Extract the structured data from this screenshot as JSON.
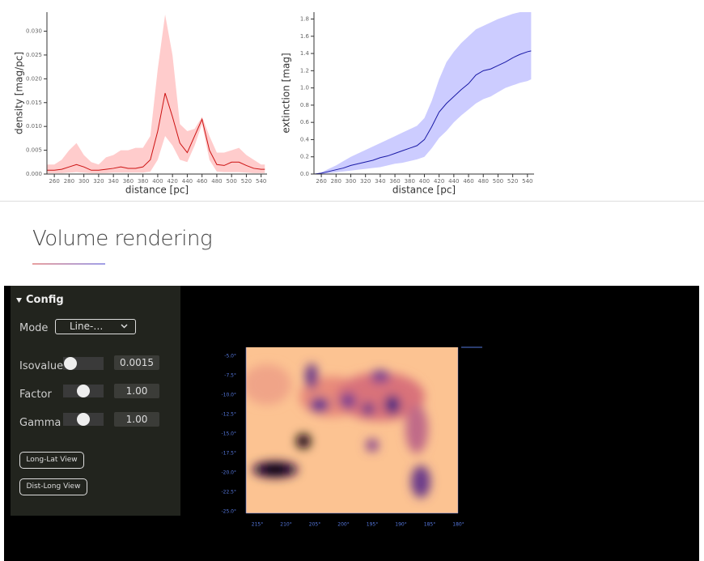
{
  "chart_data": [
    {
      "type": "line",
      "x_label": "distance [pc]",
      "y_label": "density [mag/pc]",
      "xlim": [
        250,
        548
      ],
      "ylim": [
        0,
        0.034
      ],
      "xticks": [
        260,
        280,
        300,
        320,
        340,
        360,
        380,
        400,
        420,
        440,
        460,
        480,
        500,
        520,
        540
      ],
      "yticks": [
        {
          "value": 0,
          "label": "0.000"
        },
        0.005,
        {
          "value": 0.01,
          "label": "0.010"
        },
        0.015,
        {
          "value": 0.02,
          "label": "0.020"
        },
        0.025,
        {
          "value": 0.03,
          "label": "0.030"
        }
      ],
      "x": [
        250,
        260,
        270,
        280,
        290,
        300,
        310,
        320,
        330,
        340,
        350,
        360,
        370,
        380,
        390,
        400,
        410,
        420,
        430,
        440,
        450,
        460,
        470,
        480,
        490,
        500,
        510,
        520,
        530,
        540,
        545
      ],
      "series": [
        {
          "color": "#cc1111",
          "band_color": "#ffcccc",
          "values": [
            0.0008,
            0.0008,
            0.001,
            0.0015,
            0.002,
            0.0015,
            0.0008,
            0.0008,
            0.001,
            0.0012,
            0.0015,
            0.0012,
            0.0012,
            0.0015,
            0.003,
            0.009,
            0.017,
            0.012,
            0.0065,
            0.0045,
            0.008,
            0.0115,
            0.005,
            0.002,
            0.0018,
            0.0025,
            0.0025,
            0.0018,
            0.0012,
            0.001,
            0.001
          ],
          "upper": [
            0.002,
            0.002,
            0.003,
            0.005,
            0.0065,
            0.004,
            0.0025,
            0.002,
            0.0035,
            0.004,
            0.005,
            0.005,
            0.0055,
            0.0055,
            0.008,
            0.022,
            0.0335,
            0.025,
            0.0105,
            0.009,
            0.0095,
            0.012,
            0.008,
            0.0045,
            0.0045,
            0.005,
            0.0055,
            0.004,
            0.003,
            0.002,
            0.002
          ],
          "lower": [
            0.0002,
            0.0002,
            0.0002,
            0.0003,
            0.0004,
            0.0003,
            0.0002,
            0.0002,
            0.0002,
            0.0003,
            0.0003,
            0.0003,
            0.0003,
            0.0003,
            0.0005,
            0.003,
            0.008,
            0.006,
            0.003,
            0.0025,
            0.006,
            0.0105,
            0.003,
            0.0005,
            0.0004,
            0.0004,
            0.0004,
            0.0003,
            0.0002,
            0.0002,
            0.0002
          ]
        }
      ]
    },
    {
      "type": "line",
      "x_label": "distance [pc]",
      "y_label": "extinction [mag]",
      "xlim": [
        250,
        549
      ],
      "ylim": [
        0,
        1.88
      ],
      "xticks": [
        260,
        280,
        300,
        320,
        340,
        360,
        380,
        400,
        420,
        440,
        460,
        480,
        500,
        520,
        540
      ],
      "yticks": [
        {
          "value": 0,
          "label": "0.0"
        },
        0.2,
        0.4,
        0.6,
        0.8,
        {
          "value": 1,
          "label": "1.0"
        },
        1.2,
        1.4,
        1.6,
        1.8
      ],
      "x": [
        250,
        260,
        270,
        280,
        290,
        300,
        310,
        320,
        330,
        340,
        350,
        360,
        370,
        380,
        390,
        400,
        410,
        420,
        430,
        440,
        450,
        460,
        470,
        480,
        490,
        500,
        510,
        520,
        530,
        540,
        545
      ],
      "series": [
        {
          "color": "#1a1aa6",
          "band_color": "#ccccff",
          "values": [
            0,
            0.01,
            0.03,
            0.05,
            0.07,
            0.1,
            0.12,
            0.14,
            0.16,
            0.19,
            0.21,
            0.24,
            0.27,
            0.3,
            0.33,
            0.4,
            0.55,
            0.72,
            0.82,
            0.9,
            0.98,
            1.05,
            1.15,
            1.2,
            1.22,
            1.26,
            1.3,
            1.35,
            1.39,
            1.42,
            1.43
          ],
          "upper": [
            0,
            0.02,
            0.06,
            0.1,
            0.15,
            0.2,
            0.24,
            0.28,
            0.32,
            0.36,
            0.4,
            0.44,
            0.48,
            0.52,
            0.56,
            0.65,
            0.85,
            1.1,
            1.3,
            1.42,
            1.52,
            1.6,
            1.68,
            1.72,
            1.76,
            1.8,
            1.83,
            1.86,
            1.88,
            1.88,
            1.88
          ],
          "lower": [
            0,
            0,
            0.01,
            0.02,
            0.03,
            0.04,
            0.05,
            0.06,
            0.07,
            0.08,
            0.1,
            0.12,
            0.13,
            0.15,
            0.17,
            0.2,
            0.3,
            0.42,
            0.5,
            0.6,
            0.68,
            0.75,
            0.82,
            0.87,
            0.9,
            0.95,
            1,
            1.03,
            1.06,
            1.08,
            1.1
          ]
        }
      ]
    }
  ],
  "section_title": "Volume rendering",
  "config": {
    "title": "Config",
    "mode_label": "Mode",
    "mode_value": "Line-…",
    "isovalue_label": "Isovalue",
    "isovalue": "0.0015",
    "factor_label": "Factor",
    "factor": "1.00",
    "gamma_label": "Gamma",
    "gamma": "1.00",
    "buttons": [
      "Long-Lat View",
      "Dist-Long View"
    ]
  },
  "volume": {
    "y_labels": [
      "-5.0°",
      "-7.5°",
      "-10.0°",
      "-12.5°",
      "-15.0°",
      "-17.5°",
      "-20.0°",
      "-22.5°",
      "-25.0°"
    ],
    "x_labels": [
      "215°",
      "210°",
      "205°",
      "200°",
      "195°",
      "190°",
      "185°",
      "180°"
    ]
  }
}
